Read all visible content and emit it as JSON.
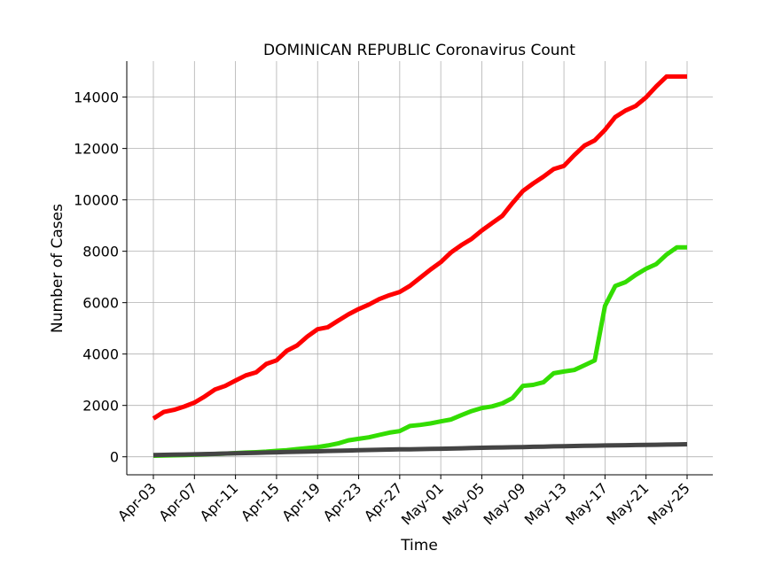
{
  "chart_data": {
    "type": "line",
    "title": "DOMINICAN REPUBLIC Coronavirus Count",
    "xlabel": "Time",
    "ylabel": "Number of Cases",
    "x_ticks": [
      "Apr-03",
      "Apr-07",
      "Apr-11",
      "Apr-15",
      "Apr-19",
      "Apr-23",
      "Apr-27",
      "May-01",
      "May-05",
      "May-09",
      "May-13",
      "May-17",
      "May-21",
      "May-25"
    ],
    "y_ticks": [
      0,
      2000,
      4000,
      6000,
      8000,
      10000,
      12000,
      14000
    ],
    "ylim": [
      -700,
      15400
    ],
    "grid": true,
    "x_dates": [
      "Apr-03",
      "Apr-04",
      "Apr-05",
      "Apr-06",
      "Apr-07",
      "Apr-08",
      "Apr-09",
      "Apr-10",
      "Apr-11",
      "Apr-12",
      "Apr-13",
      "Apr-14",
      "Apr-15",
      "Apr-16",
      "Apr-17",
      "Apr-18",
      "Apr-19",
      "Apr-20",
      "Apr-21",
      "Apr-22",
      "Apr-23",
      "Apr-24",
      "Apr-25",
      "Apr-26",
      "Apr-27",
      "Apr-28",
      "Apr-29",
      "Apr-30",
      "May-01",
      "May-02",
      "May-03",
      "May-04",
      "May-05",
      "May-06",
      "May-07",
      "May-08",
      "May-09",
      "May-10",
      "May-11",
      "May-12",
      "May-13",
      "May-14",
      "May-15",
      "May-16",
      "May-17",
      "May-18",
      "May-19",
      "May-20",
      "May-21",
      "May-22",
      "May-23",
      "May-24",
      "May-25"
    ],
    "series": [
      {
        "color": "#ff0000",
        "values": [
          1488,
          1745,
          1828,
          1956,
          2111,
          2349,
          2620,
          2759,
          2967,
          3167,
          3286,
          3614,
          3755,
          4126,
          4335,
          4680,
          4964,
          5044,
          5300,
          5543,
          5749,
          5926,
          6135,
          6293,
          6416,
          6652,
          6972,
          7288,
          7578,
          7954,
          8235,
          8480,
          8807,
          9095,
          9376,
          9882,
          10347,
          10634,
          10900,
          11196,
          11320,
          11739,
          12110,
          12314,
          12725,
          13223,
          13477,
          13657,
          13989,
          14422,
          14801,
          14801,
          14801
        ]
      },
      {
        "color": "#33dd00",
        "values": [
          40,
          50,
          60,
          70,
          80,
          95,
          110,
          125,
          145,
          165,
          180,
          200,
          230,
          260,
          300,
          340,
          380,
          440,
          520,
          640,
          700,
          760,
          850,
          940,
          1000,
          1200,
          1240,
          1300,
          1380,
          1450,
          1620,
          1780,
          1900,
          1960,
          2080,
          2290,
          2760,
          2800,
          2900,
          3250,
          3320,
          3380,
          3560,
          3750,
          5870,
          6650,
          6800,
          7080,
          7320,
          7500,
          7870,
          8150,
          8150
        ]
      },
      {
        "color": "#444444",
        "values": [
          68,
          74,
          82,
          90,
          98,
          106,
          115,
          126,
          135,
          146,
          155,
          167,
          177,
          189,
          196,
          205,
          215,
          226,
          235,
          245,
          255,
          264,
          273,
          282,
          288,
          293,
          299,
          305,
          313,
          321,
          330,
          340,
          350,
          358,
          365,
          372,
          380,
          389,
          397,
          405,
          413,
          421,
          428,
          434,
          440,
          446,
          452,
          458,
          464,
          470,
          476,
          482,
          488
        ]
      }
    ]
  }
}
